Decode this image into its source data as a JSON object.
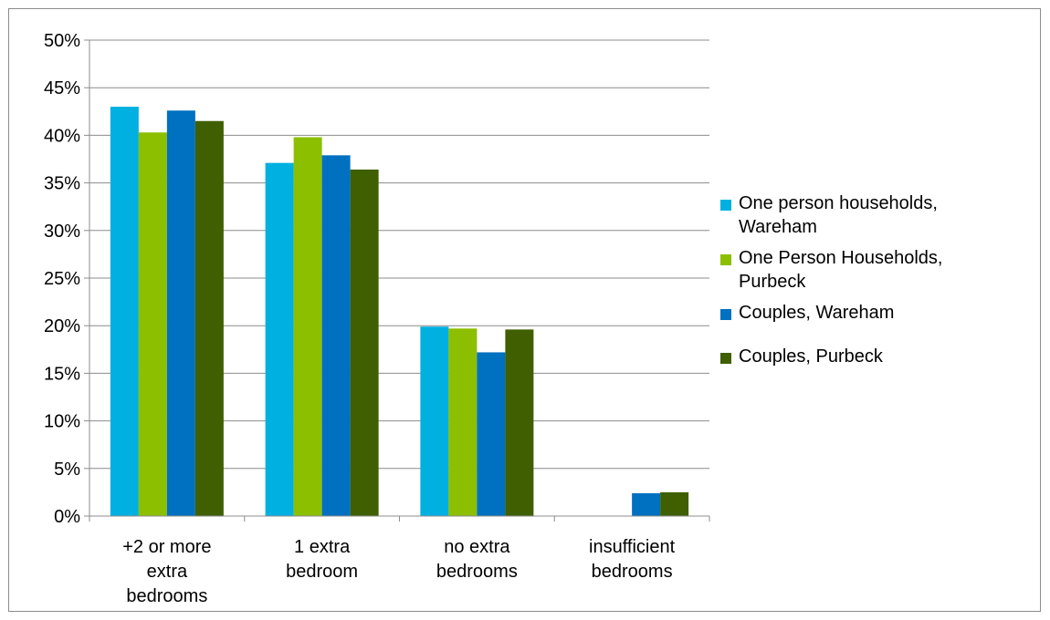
{
  "chart_data": {
    "type": "bar",
    "title": "",
    "xlabel": "",
    "ylabel": "",
    "ylim": [
      0,
      50
    ],
    "yticks": [
      "0%",
      "5%",
      "10%",
      "15%",
      "20%",
      "25%",
      "30%",
      "35%",
      "40%",
      "45%",
      "50%"
    ],
    "grid": true,
    "legend_position": "right",
    "categories": [
      [
        "+2 or more",
        "extra",
        "bedrooms"
      ],
      [
        "1 extra",
        "bedroom"
      ],
      [
        "no extra",
        "bedrooms"
      ],
      [
        "insufficient",
        "bedrooms"
      ]
    ],
    "series": [
      {
        "name": [
          "One person households,",
          "Wareham"
        ],
        "color": "#00b0e0",
        "values": [
          43.0,
          37.1,
          19.9,
          0
        ]
      },
      {
        "name": [
          "One Person Households,",
          "Purbeck"
        ],
        "color": "#8cbf00",
        "values": [
          40.3,
          39.8,
          19.7,
          0
        ]
      },
      {
        "name": [
          "Couples, Wareham"
        ],
        "color": "#0070c0",
        "values": [
          42.6,
          37.9,
          17.2,
          2.4
        ]
      },
      {
        "name": [
          "Couples, Purbeck"
        ],
        "color": "#3f5f00",
        "values": [
          41.5,
          36.4,
          19.6,
          2.5
        ]
      }
    ]
  }
}
